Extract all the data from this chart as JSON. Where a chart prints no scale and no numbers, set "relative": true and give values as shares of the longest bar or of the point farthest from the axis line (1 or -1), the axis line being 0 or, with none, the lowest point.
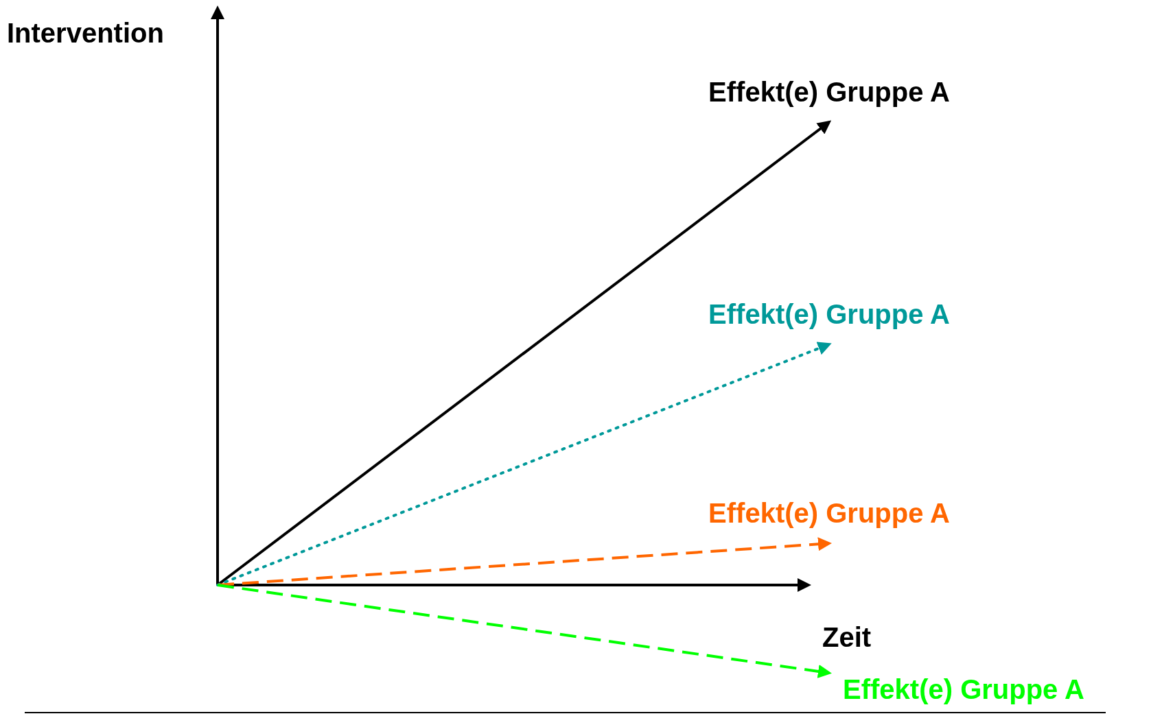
{
  "chart_data": {
    "type": "line",
    "relative": true,
    "xlabel": "Zeit",
    "ylabel": "Intervention",
    "categories": [
      null,
      null
    ],
    "series": [
      {
        "name": "Effekt(e) Gruppe A",
        "color": "#000000",
        "values": [
          0,
          1
        ],
        "line_style": "solid"
      },
      {
        "name": "Effekt(e) Gruppe A",
        "color": "#009999",
        "values": [
          0,
          0.52
        ],
        "line_style": "dotted"
      },
      {
        "name": "Effekt(e) Gruppe A",
        "color": "#ff6600",
        "values": [
          0,
          0.09
        ],
        "line_style": "dashed"
      },
      {
        "name": "Effekt(e) Gruppe A",
        "color": "#00ff00",
        "values": [
          0,
          -0.19
        ],
        "line_style": "dashed"
      }
    ]
  }
}
